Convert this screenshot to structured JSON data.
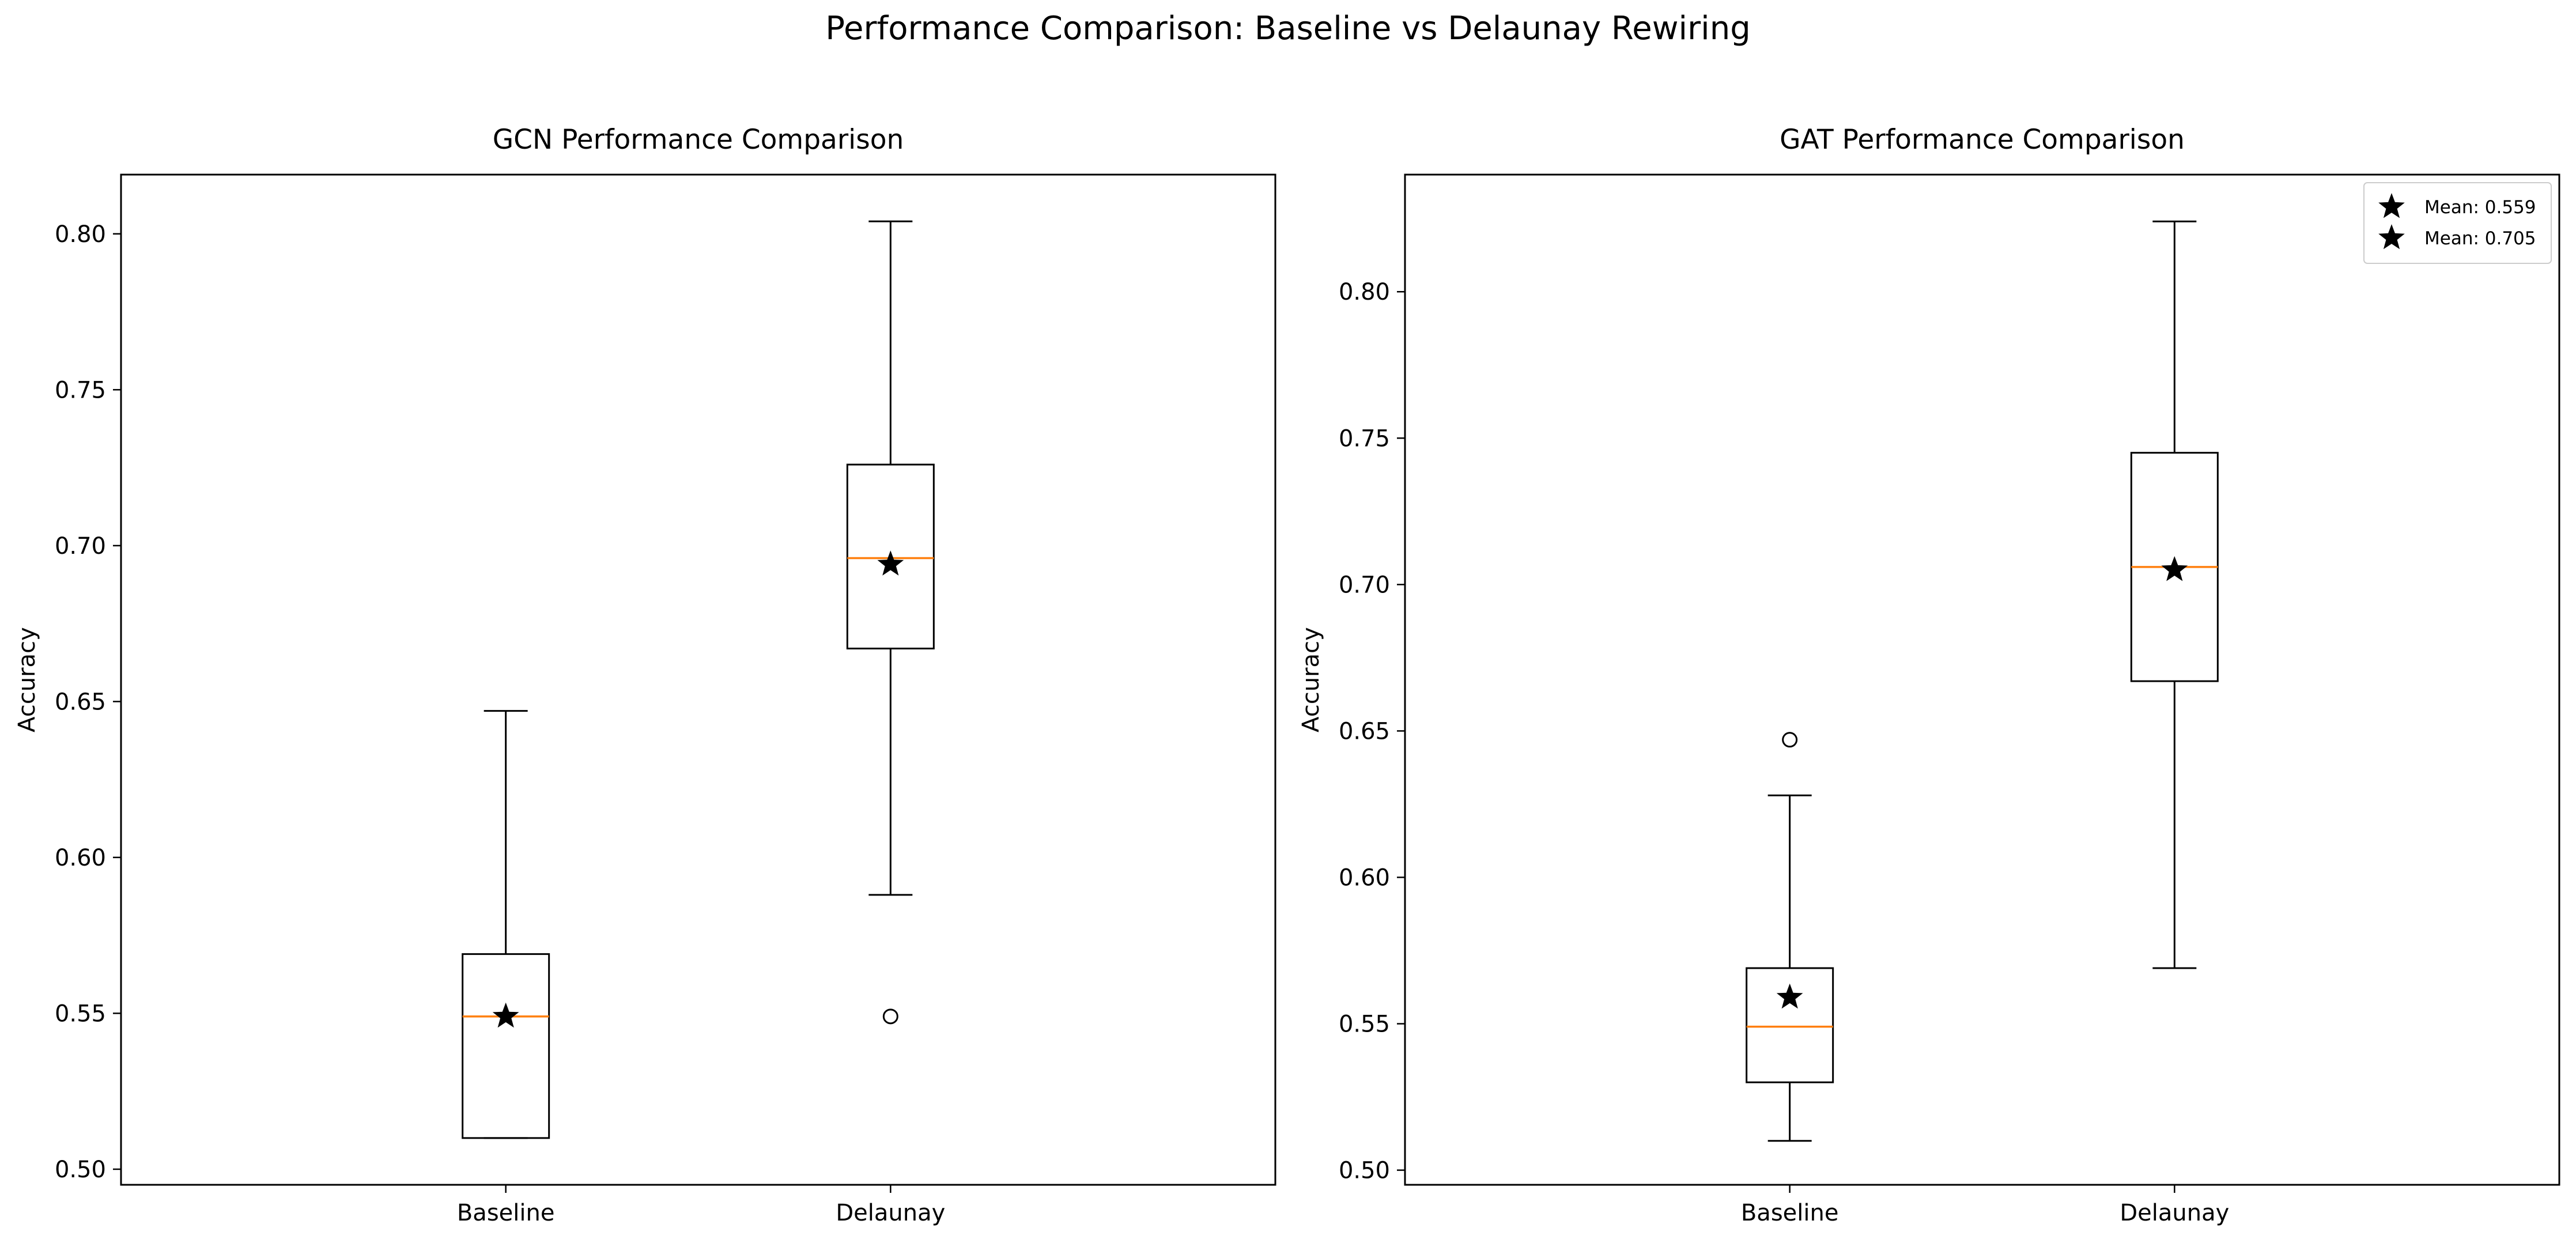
{
  "figure": {
    "title": "Performance Comparison: Baseline vs Delaunay Rewiring"
  },
  "chart_data": [
    {
      "type": "box",
      "title": "GCN Performance Comparison",
      "xlabel": "",
      "ylabel": "Accuracy",
      "categories": [
        "Baseline",
        "Delaunay"
      ],
      "ylim": [
        0.495,
        0.819
      ],
      "yticks": [
        0.5,
        0.55,
        0.6,
        0.65,
        0.7,
        0.75,
        0.8
      ],
      "boxes": [
        {
          "category": "Baseline",
          "whisker_low": 0.51,
          "q1": 0.51,
          "median": 0.549,
          "q3": 0.569,
          "whisker_high": 0.647,
          "mean": 0.549,
          "outliers": []
        },
        {
          "category": "Delaunay",
          "whisker_low": 0.588,
          "q1": 0.667,
          "median": 0.696,
          "q3": 0.726,
          "whisker_high": 0.804,
          "mean": 0.694,
          "outliers": [
            0.549
          ]
        }
      ],
      "grid": false,
      "legend": null
    },
    {
      "type": "box",
      "title": "GAT Performance Comparison",
      "xlabel": "",
      "ylabel": "Accuracy",
      "categories": [
        "Baseline",
        "Delaunay"
      ],
      "ylim": [
        0.495,
        0.84
      ],
      "yticks": [
        0.5,
        0.55,
        0.6,
        0.65,
        0.7,
        0.75,
        0.8
      ],
      "boxes": [
        {
          "category": "Baseline",
          "whisker_low": 0.51,
          "q1": 0.53,
          "median": 0.549,
          "q3": 0.569,
          "whisker_high": 0.628,
          "mean": 0.559,
          "outliers": [
            0.647
          ]
        },
        {
          "category": "Delaunay",
          "whisker_low": 0.569,
          "q1": 0.667,
          "median": 0.706,
          "q3": 0.745,
          "whisker_high": 0.824,
          "mean": 0.705,
          "outliers": []
        }
      ],
      "grid": false,
      "legend": {
        "position": "top-right",
        "entries": [
          "Mean: 0.559",
          "Mean: 0.705"
        ]
      }
    }
  ],
  "colors": {
    "median": "#ff7f0e",
    "box": "#000000",
    "mean_marker": "#000000"
  }
}
